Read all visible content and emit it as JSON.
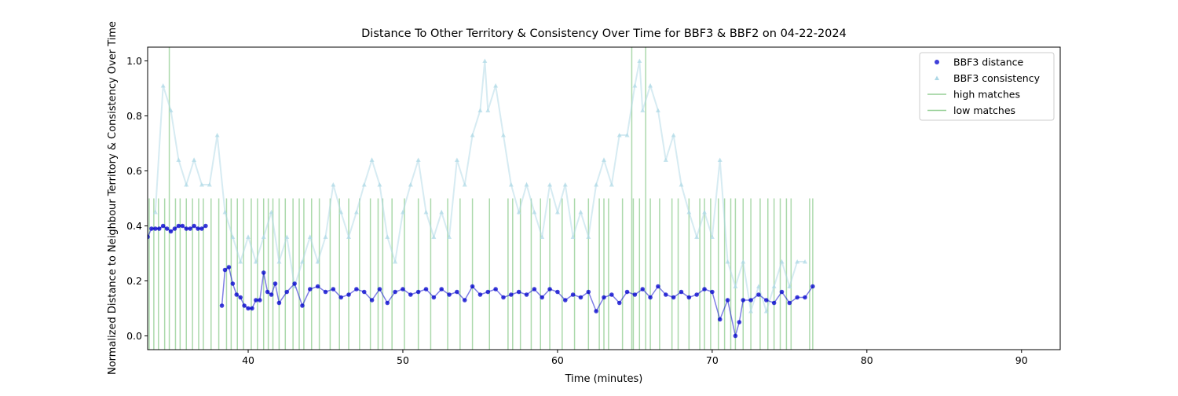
{
  "chart_data": {
    "type": "scatter",
    "title": "Distance To Other Territory & Consistency Over Time for BBF3 & BBF2 on 04-22-2024",
    "x_label": "Time (minutes)",
    "y_label": "Normalized Distance to Neighbour Territory & Consistency Over Time",
    "xlim": [
      33.5,
      92.5
    ],
    "ylim": [
      -0.05,
      1.05
    ],
    "xticks": [
      40,
      50,
      60,
      70,
      80,
      90
    ],
    "yticks": [
      {
        "value": 0,
        "label": "0.0"
      },
      {
        "value": 0.2,
        "label": "0.2"
      },
      {
        "value": 0.4,
        "label": "0.4"
      },
      {
        "value": 0.6,
        "label": "0.6"
      },
      {
        "value": 0.8,
        "label": "0.8"
      },
      {
        "value": 1,
        "label": "1.0"
      }
    ],
    "legend": "upper right",
    "series": [
      {
        "name": "BBF3 distance",
        "color": "#0000cc",
        "marker": "circle",
        "x": [
          33.5,
          33.75,
          34,
          34.25,
          34.5,
          34.75,
          35,
          35.25,
          35.5,
          35.75,
          36,
          36.25,
          36.5,
          36.75,
          37,
          37.25,
          38.3,
          38.5,
          38.75,
          39,
          39.25,
          39.5,
          39.75,
          40,
          40.25,
          40.5,
          40.75,
          41,
          41.25,
          41.5,
          41.75,
          42,
          42.5,
          43,
          43.5,
          44,
          44.5,
          45,
          45.5,
          46,
          46.5,
          47,
          47.5,
          48,
          48.5,
          49,
          49.5,
          50,
          50.5,
          51,
          51.5,
          52,
          52.5,
          53,
          53.5,
          54,
          54.5,
          55,
          55.5,
          56,
          56.5,
          57,
          57.5,
          58,
          58.5,
          59,
          59.5,
          60,
          60.5,
          61,
          61.5,
          62,
          62.5,
          63,
          63.5,
          64,
          64.5,
          65,
          65.5,
          66,
          66.5,
          67,
          67.5,
          68,
          68.5,
          69,
          69.5,
          70,
          70.5,
          71,
          71.5,
          71.75,
          72,
          72.5,
          73,
          73.5,
          74,
          74.5,
          75,
          75.5,
          76,
          76.5
        ],
        "values": [
          0.36,
          0.39,
          0.39,
          0.39,
          0.4,
          0.39,
          0.38,
          0.39,
          0.4,
          0.4,
          0.39,
          0.39,
          0.4,
          0.39,
          0.39,
          0.4,
          0.11,
          0.24,
          0.25,
          0.19,
          0.15,
          0.14,
          0.11,
          0.1,
          0.1,
          0.13,
          0.13,
          0.23,
          0.16,
          0.15,
          0.19,
          0.12,
          0.16,
          0.19,
          0.11,
          0.17,
          0.18,
          0.16,
          0.17,
          0.14,
          0.15,
          0.17,
          0.16,
          0.13,
          0.17,
          0.12,
          0.16,
          0.17,
          0.15,
          0.16,
          0.17,
          0.14,
          0.17,
          0.15,
          0.16,
          0.13,
          0.18,
          0.15,
          0.16,
          0.17,
          0.14,
          0.15,
          0.16,
          0.15,
          0.17,
          0.14,
          0.17,
          0.16,
          0.13,
          0.15,
          0.14,
          0.16,
          0.09,
          0.14,
          0.15,
          0.12,
          0.16,
          0.15,
          0.17,
          0.14,
          0.18,
          0.15,
          0.14,
          0.16,
          0.14,
          0.15,
          0.17,
          0.16,
          0.06,
          0.13,
          0,
          0.05,
          0.13,
          0.13,
          0.15,
          0.13,
          0.12,
          0.16,
          0.12,
          0.14,
          0.14,
          0.18
        ]
      },
      {
        "name": "BBF3 consistency",
        "color": "#add8e6",
        "marker": "triangle",
        "x": [
          34,
          34.5,
          35,
          35.5,
          36,
          36.5,
          37,
          37.5,
          38,
          38.5,
          39,
          39.5,
          40,
          40.5,
          41,
          41.5,
          42,
          42.5,
          43,
          43.5,
          44,
          44.5,
          45,
          45.5,
          46,
          46.5,
          47,
          47.5,
          48,
          48.5,
          49,
          49.5,
          50,
          50.5,
          51,
          51.5,
          52,
          52.5,
          53,
          53.5,
          54,
          54.5,
          55,
          55.3,
          55.5,
          56,
          56.5,
          57,
          57.5,
          58,
          58.5,
          59,
          59.5,
          60,
          60.5,
          61,
          61.5,
          62,
          62.5,
          63,
          63.5,
          64,
          64.5,
          65,
          65.3,
          65.5,
          66,
          66.5,
          67,
          67.5,
          68,
          68.5,
          69,
          69.5,
          70,
          70.5,
          71,
          71.5,
          72,
          72.5,
          73,
          73.5,
          74,
          74.5,
          75,
          75.5,
          76
        ],
        "values": [
          0.45,
          0.91,
          0.82,
          0.64,
          0.55,
          0.64,
          0.55,
          0.55,
          0.73,
          0.45,
          0.36,
          0.27,
          0.36,
          0.27,
          0.36,
          0.45,
          0.27,
          0.36,
          0.18,
          0.27,
          0.36,
          0.27,
          0.36,
          0.55,
          0.45,
          0.36,
          0.45,
          0.55,
          0.64,
          0.55,
          0.36,
          0.27,
          0.45,
          0.55,
          0.64,
          0.45,
          0.36,
          0.45,
          0.36,
          0.64,
          0.55,
          0.73,
          0.82,
          1.0,
          0.82,
          0.91,
          0.73,
          0.55,
          0.45,
          0.55,
          0.45,
          0.36,
          0.55,
          0.45,
          0.55,
          0.36,
          0.45,
          0.36,
          0.55,
          0.64,
          0.55,
          0.73,
          0.73,
          0.91,
          1.0,
          0.82,
          0.91,
          0.82,
          0.64,
          0.73,
          0.55,
          0.45,
          0.36,
          0.45,
          0.36,
          0.64,
          0.27,
          0.18,
          0.27,
          0.09,
          0.18,
          0.09,
          0.18,
          0.27,
          0.18,
          0.27,
          0.27
        ]
      },
      {
        "name": "high matches",
        "color": "#2ca02c",
        "marker": "vline",
        "x": [
          34.9,
          64.8,
          65.7
        ]
      },
      {
        "name": "low matches",
        "color": "#2ca02c",
        "marker": "vline",
        "ymax": 0.5,
        "x": [
          33.6,
          33.9,
          34.2,
          34.6,
          35.3,
          35.6,
          36.0,
          36.4,
          36.8,
          37.1,
          37.6,
          38.1,
          38.6,
          38.9,
          39.3,
          39.7,
          40.2,
          40.6,
          41.0,
          41.3,
          41.6,
          42.0,
          42.4,
          42.9,
          43.3,
          43.6,
          44.1,
          44.6,
          45.3,
          45.9,
          46.5,
          47.2,
          47.9,
          48.4,
          48.7,
          49.3,
          50.1,
          51.0,
          51.8,
          52.9,
          53.7,
          54.5,
          55.6,
          56.8,
          57.1,
          57.6,
          58.3,
          58.9,
          59.5,
          60.3,
          61.1,
          62.0,
          62.7,
          63.0,
          63.3,
          64.2,
          64.9,
          65.3,
          66.0,
          66.6,
          67.4,
          67.8,
          68.5,
          69.2,
          69.5,
          69.9,
          70.4,
          70.8,
          71.2,
          71.5,
          72.0,
          72.5,
          73.1,
          73.6,
          74.0,
          74.4,
          74.8,
          75.1,
          76.3,
          76.5
        ]
      }
    ]
  }
}
